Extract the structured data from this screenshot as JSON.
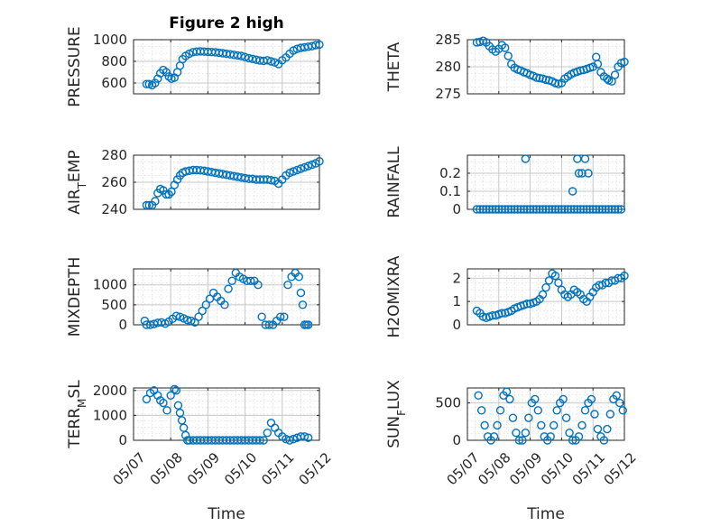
{
  "figure": {
    "title": "Figure 2 high"
  },
  "chart_data": [
    {
      "type": "scatter",
      "id": "pressure",
      "ylabel": "PRESSURE",
      "title": "Figure 2 high",
      "ylim": [
        500,
        1000
      ],
      "yticks": [
        600,
        800,
        1000
      ],
      "xlim": [
        0,
        5
      ],
      "xticks": [
        0,
        1,
        2,
        3,
        4,
        5
      ],
      "xticklabels": [],
      "xlabel": "",
      "grid": true,
      "x": [
        0.35,
        0.42,
        0.5,
        0.58,
        0.65,
        0.72,
        0.8,
        0.88,
        0.95,
        1.02,
        1.1,
        1.18,
        1.25,
        1.32,
        1.4,
        1.5,
        1.6,
        1.7,
        1.8,
        1.9,
        2.0,
        2.1,
        2.2,
        2.3,
        2.4,
        2.5,
        2.6,
        2.7,
        2.8,
        2.9,
        3.0,
        3.1,
        3.2,
        3.3,
        3.4,
        3.5,
        3.6,
        3.7,
        3.8,
        3.9,
        4.0,
        4.1,
        4.2,
        4.3,
        4.4,
        4.5,
        4.6,
        4.7,
        4.8,
        4.9,
        5.0
      ],
      "y": [
        590,
        590,
        580,
        600,
        640,
        690,
        720,
        700,
        660,
        640,
        650,
        700,
        760,
        820,
        850,
        870,
        885,
        890,
        892,
        890,
        888,
        886,
        884,
        880,
        875,
        870,
        865,
        860,
        855,
        850,
        840,
        830,
        822,
        815,
        808,
        805,
        810,
        800,
        790,
        775,
        810,
        835,
        870,
        900,
        915,
        925,
        930,
        935,
        940,
        950,
        955
      ]
    },
    {
      "type": "scatter",
      "id": "theta",
      "ylabel": "THETA",
      "ylim": [
        275,
        285
      ],
      "yticks": [
        275,
        280,
        285
      ],
      "xlim": [
        0,
        5
      ],
      "xticks": [
        0,
        1,
        2,
        3,
        4,
        5
      ],
      "xticklabels": [],
      "xlabel": "",
      "grid": true,
      "x": [
        0.3,
        0.4,
        0.5,
        0.6,
        0.7,
        0.8,
        0.9,
        1.0,
        1.1,
        1.2,
        1.3,
        1.4,
        1.5,
        1.6,
        1.7,
        1.8,
        1.9,
        2.0,
        2.1,
        2.2,
        2.3,
        2.4,
        2.5,
        2.6,
        2.7,
        2.8,
        2.9,
        3.0,
        3.1,
        3.2,
        3.3,
        3.4,
        3.5,
        3.6,
        3.7,
        3.8,
        3.9,
        4.0,
        4.1,
        4.15,
        4.25,
        4.35,
        4.45,
        4.5,
        4.6,
        4.7,
        4.8,
        4.9,
        5.0
      ],
      "y": [
        284.5,
        284.6,
        284.8,
        284.5,
        283.8,
        283.2,
        282.8,
        283.3,
        284.0,
        283.5,
        282.0,
        280.5,
        279.8,
        279.5,
        279.3,
        279.0,
        278.8,
        278.5,
        278.3,
        278.0,
        277.9,
        277.8,
        277.6,
        277.5,
        277.3,
        277.0,
        276.8,
        277.0,
        277.8,
        278.2,
        278.6,
        278.9,
        279.1,
        279.3,
        279.4,
        279.6,
        279.8,
        280.0,
        281.8,
        280.5,
        279.0,
        278.2,
        277.8,
        277.5,
        277.3,
        278.5,
        280.0,
        280.7,
        280.9
      ]
    },
    {
      "type": "scatter",
      "id": "air_temp",
      "ylabel": "AIR_TEMP",
      "ylim": [
        240,
        280
      ],
      "yticks": [
        240,
        260,
        280
      ],
      "xlim": [
        0,
        5
      ],
      "xticks": [
        0,
        1,
        2,
        3,
        4,
        5
      ],
      "xticklabels": [],
      "xlabel": "",
      "grid": true,
      "x": [
        0.35,
        0.42,
        0.5,
        0.58,
        0.65,
        0.72,
        0.8,
        0.88,
        0.95,
        1.02,
        1.1,
        1.18,
        1.25,
        1.32,
        1.4,
        1.5,
        1.6,
        1.7,
        1.8,
        1.9,
        2.0,
        2.1,
        2.2,
        2.3,
        2.4,
        2.5,
        2.6,
        2.7,
        2.8,
        2.9,
        3.0,
        3.1,
        3.2,
        3.3,
        3.4,
        3.5,
        3.6,
        3.7,
        3.8,
        3.9,
        4.0,
        4.1,
        4.2,
        4.3,
        4.4,
        4.5,
        4.6,
        4.7,
        4.8,
        4.9,
        5.0
      ],
      "y": [
        243,
        243,
        243,
        246,
        252,
        255,
        254,
        251,
        251,
        253,
        258,
        262,
        265,
        267,
        268,
        268.5,
        269,
        269,
        268.8,
        268.5,
        268,
        267.5,
        267,
        266.5,
        266,
        265.5,
        265,
        264.5,
        264,
        263.5,
        263,
        262.5,
        262.5,
        262,
        262,
        262,
        262,
        261.5,
        261,
        259,
        262,
        265,
        267,
        268,
        269,
        270,
        271,
        272,
        273,
        274,
        275.5
      ]
    },
    {
      "type": "scatter",
      "id": "rainfall",
      "ylabel": "RAINFALL",
      "ylim": [
        0,
        0.3
      ],
      "yticks": [
        0,
        0.1,
        0.2
      ],
      "xlim": [
        0,
        5
      ],
      "xticks": [
        0,
        1,
        2,
        3,
        4,
        5
      ],
      "xticklabels": [],
      "xlabel": "",
      "grid": true,
      "x": [
        0.3,
        0.4,
        0.5,
        0.6,
        0.7,
        0.8,
        0.9,
        1.0,
        1.1,
        1.2,
        1.3,
        1.4,
        1.5,
        1.6,
        1.7,
        1.8,
        1.9,
        2.0,
        2.1,
        2.2,
        2.3,
        2.4,
        2.5,
        2.6,
        2.7,
        2.8,
        2.9,
        3.0,
        3.1,
        3.2,
        3.3,
        3.4,
        3.5,
        3.6,
        3.7,
        3.8,
        3.9,
        4.0,
        4.1,
        4.2,
        4.3,
        4.4,
        4.5,
        4.6,
        4.7,
        4.8,
        4.9,
        1.85,
        3.35,
        3.5,
        3.55,
        3.65,
        3.75,
        3.85
      ],
      "y": [
        0,
        0,
        0,
        0,
        0,
        0,
        0,
        0,
        0,
        0,
        0,
        0,
        0,
        0,
        0,
        0,
        0,
        0,
        0,
        0,
        0,
        0,
        0,
        0,
        0,
        0,
        0,
        0,
        0,
        0,
        0,
        0,
        0,
        0,
        0,
        0,
        0,
        0,
        0,
        0,
        0,
        0,
        0,
        0,
        0,
        0,
        0,
        0.28,
        0.1,
        0.28,
        0.2,
        0.2,
        0.28,
        0.2
      ]
    },
    {
      "type": "scatter",
      "id": "mixdepth",
      "ylabel": "MIXDEPTH",
      "ylim": [
        0,
        1400
      ],
      "yticks": [
        0,
        500,
        1000
      ],
      "xlim": [
        0,
        5
      ],
      "xticks": [
        0,
        1,
        2,
        3,
        4,
        5
      ],
      "xticklabels": [],
      "xlabel": "",
      "grid": true,
      "x": [
        0.3,
        0.35,
        0.45,
        0.55,
        0.65,
        0.75,
        0.85,
        0.95,
        1.05,
        1.15,
        1.25,
        1.35,
        1.45,
        1.55,
        1.65,
        1.75,
        1.85,
        1.95,
        2.05,
        2.15,
        2.25,
        2.35,
        2.45,
        2.55,
        2.65,
        2.75,
        2.85,
        2.95,
        3.05,
        3.15,
        3.25,
        3.35,
        3.45,
        3.55,
        3.65,
        3.75,
        3.85,
        3.95,
        4.05,
        4.15,
        4.25,
        4.35,
        4.45,
        4.5,
        4.55,
        4.6,
        4.65,
        4.7
      ],
      "y": [
        100,
        0,
        0,
        20,
        50,
        60,
        30,
        80,
        150,
        220,
        200,
        160,
        120,
        100,
        60,
        200,
        350,
        500,
        650,
        800,
        700,
        600,
        500,
        900,
        1100,
        1300,
        1200,
        1150,
        1100,
        1100,
        1100,
        1000,
        200,
        0,
        0,
        0,
        100,
        200,
        200,
        1000,
        1200,
        1300,
        1200,
        800,
        500,
        0,
        0,
        0
      ]
    },
    {
      "type": "scatter",
      "id": "h2omixra",
      "ylabel": "H2OMIXRA",
      "ylim": [
        0,
        2.4
      ],
      "yticks": [
        0,
        1,
        2
      ],
      "xlim": [
        0,
        5
      ],
      "xticks": [
        0,
        1,
        2,
        3,
        4,
        5
      ],
      "xticklabels": [],
      "xlabel": "",
      "grid": true,
      "x": [
        0.3,
        0.4,
        0.5,
        0.6,
        0.7,
        0.8,
        0.9,
        1.0,
        1.1,
        1.2,
        1.3,
        1.4,
        1.5,
        1.6,
        1.7,
        1.8,
        1.9,
        2.0,
        2.1,
        2.2,
        2.3,
        2.4,
        2.5,
        2.6,
        2.7,
        2.8,
        2.9,
        3.0,
        3.1,
        3.2,
        3.3,
        3.4,
        3.5,
        3.6,
        3.7,
        3.8,
        3.9,
        4.0,
        4.1,
        4.2,
        4.3,
        4.4,
        4.5,
        4.6,
        4.7,
        4.8,
        4.9,
        5.0
      ],
      "y": [
        0.6,
        0.5,
        0.35,
        0.3,
        0.35,
        0.4,
        0.4,
        0.45,
        0.5,
        0.5,
        0.55,
        0.6,
        0.7,
        0.75,
        0.8,
        0.85,
        0.9,
        0.9,
        0.95,
        1.0,
        1.1,
        1.3,
        1.6,
        1.9,
        2.2,
        2.1,
        1.8,
        1.5,
        1.3,
        1.2,
        1.3,
        1.5,
        1.4,
        1.3,
        1.1,
        1.0,
        1.2,
        1.4,
        1.6,
        1.7,
        1.7,
        1.8,
        1.8,
        1.9,
        1.9,
        2.0,
        2.0,
        2.1
      ]
    },
    {
      "type": "scatter",
      "id": "terr_msl",
      "ylabel": "TERR_MSL",
      "ylim": [
        0,
        2100
      ],
      "yticks": [
        0,
        1000,
        2000
      ],
      "xlim": [
        0,
        5
      ],
      "xticks": [
        0,
        1,
        2,
        3,
        4,
        5
      ],
      "xticklabels": [
        "05/07",
        "05/08",
        "05/09",
        "05/10",
        "05/11",
        "05/12"
      ],
      "xlabel": "Time",
      "grid": true,
      "x": [
        0.35,
        0.45,
        0.55,
        0.65,
        0.72,
        0.8,
        0.9,
        1.0,
        1.1,
        1.15,
        1.2,
        1.25,
        1.3,
        1.35,
        1.4,
        1.45,
        1.5,
        1.6,
        1.7,
        1.8,
        1.9,
        2.0,
        2.1,
        2.2,
        2.3,
        2.4,
        2.5,
        2.6,
        2.7,
        2.8,
        2.9,
        3.0,
        3.1,
        3.2,
        3.3,
        3.4,
        3.5,
        3.6,
        3.7,
        3.8,
        3.9,
        4.0,
        4.1,
        4.2,
        4.3,
        4.4,
        4.5,
        4.6,
        4.7
      ],
      "y": [
        1650,
        1900,
        2000,
        1800,
        1600,
        1500,
        1200,
        1800,
        2050,
        2000,
        1400,
        1100,
        800,
        500,
        200,
        0,
        0,
        0,
        0,
        0,
        0,
        0,
        0,
        0,
        0,
        0,
        0,
        0,
        0,
        0,
        0,
        0,
        0,
        0,
        0,
        0,
        0,
        300,
        700,
        500,
        300,
        150,
        50,
        0,
        50,
        100,
        150,
        150,
        100
      ]
    },
    {
      "type": "scatter",
      "id": "sun_flux",
      "ylabel": "SUN_FLUX",
      "ylim": [
        0,
        700
      ],
      "yticks": [
        0,
        500
      ],
      "xlim": [
        0,
        5
      ],
      "xticks": [
        0,
        1,
        2,
        3,
        4,
        5
      ],
      "xticklabels": [
        "05/07",
        "05/08",
        "05/09",
        "05/10",
        "05/11",
        "05/12"
      ],
      "xlabel": "Time",
      "grid": true,
      "x": [
        0.35,
        0.45,
        0.55,
        0.65,
        0.75,
        0.85,
        0.95,
        1.05,
        1.15,
        1.25,
        1.35,
        1.45,
        1.55,
        1.65,
        1.75,
        1.85,
        1.95,
        2.05,
        2.15,
        2.25,
        2.35,
        2.45,
        2.55,
        2.65,
        2.75,
        2.85,
        2.95,
        3.05,
        3.15,
        3.25,
        3.35,
        3.45,
        3.55,
        3.65,
        3.75,
        3.85,
        3.95,
        4.05,
        4.15,
        4.25,
        4.35,
        4.45,
        4.55,
        4.65,
        4.75,
        4.85,
        4.95
      ],
      "y": [
        600,
        400,
        200,
        50,
        0,
        50,
        200,
        400,
        600,
        650,
        550,
        300,
        100,
        0,
        0,
        100,
        300,
        500,
        550,
        400,
        200,
        50,
        0,
        50,
        200,
        400,
        500,
        550,
        300,
        100,
        0,
        0,
        50,
        200,
        400,
        500,
        550,
        350,
        150,
        50,
        0,
        150,
        350,
        550,
        600,
        500,
        400
      ]
    }
  ]
}
